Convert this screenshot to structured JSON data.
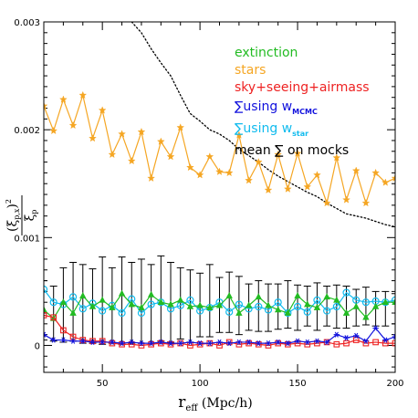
{
  "chart_data": {
    "type": "line",
    "xlabel": {
      "main": "r",
      "sub": "eff",
      "rest": " (Mpc/h)"
    },
    "ylabel": {
      "num": "(ξ",
      "num_sub": "p,x",
      "num_close": ")",
      "num_sup": "2",
      "den": "ξ",
      "den_sub": "p"
    },
    "xlim": [
      20,
      200
    ],
    "ylim": [
      -0.00025,
      0.003
    ],
    "xticks": [
      50,
      100,
      150,
      200
    ],
    "xtick_labels": [
      "50",
      "100",
      "150",
      "200"
    ],
    "yticks": [
      0,
      0.001,
      0.002,
      0.003
    ],
    "ytick_labels": [
      "0",
      "0.001",
      "0.002",
      "0.003"
    ],
    "legend_placement": "top-right",
    "legend": [
      {
        "label": "extinction",
        "color": "#22bb22"
      },
      {
        "label": "stars",
        "color": "#f5a623"
      },
      {
        "label": "sky+seeing+airmass",
        "color": "#ee2222"
      },
      {
        "label": "∑using w",
        "sub": "MCMC",
        "color": "#1111dd"
      },
      {
        "label": "∑using w",
        "sub": "star",
        "color": "#11bbee"
      },
      {
        "label": "mean ∑ on mocks",
        "color": "#000000"
      }
    ],
    "series": [
      {
        "name": "extinction",
        "marker": "triangle",
        "color": "#22bb22",
        "x": [
          20,
          25,
          30,
          35,
          40,
          45,
          50,
          55,
          60,
          65,
          70,
          75,
          80,
          85,
          90,
          95,
          100,
          105,
          110,
          115,
          120,
          125,
          130,
          135,
          140,
          145,
          150,
          155,
          160,
          165,
          170,
          175,
          180,
          185,
          190,
          195,
          200
        ],
        "y": [
          0.00033,
          0.00025,
          0.0004,
          0.0003,
          0.00046,
          0.00036,
          0.00042,
          0.00035,
          0.00048,
          0.00038,
          0.00035,
          0.00047,
          0.0004,
          0.00038,
          0.00042,
          0.00036,
          0.00037,
          0.00035,
          0.00037,
          0.00046,
          0.0003,
          0.00037,
          0.00045,
          0.00037,
          0.00033,
          0.0003,
          0.00046,
          0.00038,
          0.00035,
          0.00045,
          0.00042,
          0.0003,
          0.00036,
          0.00026,
          0.00036,
          0.0004,
          0.0004
        ]
      },
      {
        "name": "stars",
        "marker": "star",
        "color": "#f5a623",
        "x": [
          20,
          25,
          30,
          35,
          40,
          45,
          50,
          55,
          60,
          65,
          70,
          75,
          80,
          85,
          90,
          95,
          100,
          105,
          110,
          115,
          120,
          125,
          130,
          135,
          140,
          145,
          150,
          155,
          160,
          165,
          170,
          175,
          180,
          185,
          190,
          195,
          200
        ],
        "y": [
          0.00222,
          0.00199,
          0.00228,
          0.00204,
          0.00232,
          0.00192,
          0.00218,
          0.00177,
          0.00196,
          0.00171,
          0.00198,
          0.00155,
          0.00189,
          0.00175,
          0.00202,
          0.00165,
          0.00158,
          0.00175,
          0.00161,
          0.0016,
          0.00195,
          0.00153,
          0.0017,
          0.00144,
          0.00177,
          0.00145,
          0.00178,
          0.00147,
          0.00158,
          0.00132,
          0.00174,
          0.00135,
          0.00162,
          0.00132,
          0.0016,
          0.00151,
          0.00155
        ]
      },
      {
        "name": "sky+seeing+airmass",
        "marker": "square",
        "color": "#ee2222",
        "x": [
          20,
          25,
          30,
          35,
          40,
          45,
          50,
          55,
          60,
          65,
          70,
          75,
          80,
          85,
          90,
          95,
          100,
          105,
          110,
          115,
          120,
          125,
          130,
          135,
          140,
          145,
          150,
          155,
          160,
          165,
          170,
          175,
          180,
          185,
          190,
          195,
          200
        ],
        "y": [
          0.00028,
          0.00026,
          0.00014,
          8e-05,
          5e-05,
          4e-05,
          4e-05,
          2e-05,
          1e-05,
          1e-05,
          0.0,
          1e-05,
          2e-05,
          1e-05,
          2e-05,
          0.0,
          1e-05,
          2e-05,
          0.0,
          3e-05,
          1e-05,
          2e-05,
          1e-05,
          0.0,
          2e-05,
          1e-05,
          2e-05,
          1e-05,
          2e-05,
          3e-05,
          1e-05,
          2e-05,
          5e-05,
          2e-05,
          3e-05,
          2e-05,
          2e-05
        ]
      },
      {
        "name": "∑using wMCMC",
        "marker": "asterisk",
        "color": "#1111dd",
        "x": [
          20,
          25,
          30,
          35,
          40,
          45,
          50,
          55,
          60,
          65,
          70,
          75,
          80,
          85,
          90,
          95,
          100,
          105,
          110,
          115,
          120,
          125,
          130,
          135,
          140,
          145,
          150,
          155,
          160,
          165,
          170,
          175,
          180,
          185,
          190,
          195,
          200
        ],
        "y": [
          0.0001,
          5e-05,
          5e-05,
          4e-05,
          4e-05,
          3e-05,
          3e-05,
          3e-05,
          2e-05,
          3e-05,
          2e-05,
          2e-05,
          3e-05,
          2e-05,
          2e-05,
          3e-05,
          2e-05,
          2e-05,
          3e-05,
          2e-05,
          3e-05,
          3e-05,
          2e-05,
          2e-05,
          3e-05,
          2e-05,
          4e-05,
          3e-05,
          4e-05,
          3e-05,
          0.0001,
          7e-05,
          9e-05,
          4e-05,
          0.00016,
          5e-05,
          8e-05
        ]
      },
      {
        "name": "∑using wstar",
        "marker": "circle",
        "color": "#11bbee",
        "x": [
          20,
          25,
          30,
          35,
          40,
          45,
          50,
          55,
          60,
          65,
          70,
          75,
          80,
          85,
          90,
          95,
          100,
          105,
          110,
          115,
          120,
          125,
          130,
          135,
          140,
          145,
          150,
          155,
          160,
          165,
          170,
          175,
          180,
          185,
          190,
          195,
          200
        ],
        "y": [
          0.00052,
          0.0004,
          0.00038,
          0.00045,
          0.00034,
          0.00039,
          0.00032,
          0.00037,
          0.0003,
          0.00043,
          0.0003,
          0.00038,
          0.0004,
          0.00034,
          0.00037,
          0.00042,
          0.00032,
          0.00035,
          0.0004,
          0.00031,
          0.00038,
          0.00034,
          0.00036,
          0.00033,
          0.0004,
          0.0003,
          0.00036,
          0.00031,
          0.00042,
          0.00032,
          0.00036,
          0.00049,
          0.00042,
          0.0004,
          0.00041,
          0.0004,
          0.00042
        ]
      },
      {
        "name": "mean ∑ on mocks",
        "style": "dotted",
        "color": "#000000",
        "x": [
          65,
          70,
          75,
          80,
          85,
          90,
          95,
          100,
          105,
          110,
          115,
          120,
          125,
          130,
          135,
          140,
          145,
          150,
          155,
          160,
          165,
          170,
          175,
          180,
          185,
          190,
          195,
          200
        ],
        "y": [
          0.003,
          0.0029,
          0.00275,
          0.00262,
          0.0025,
          0.00232,
          0.00215,
          0.00208,
          0.002,
          0.00196,
          0.0019,
          0.00182,
          0.00176,
          0.0017,
          0.00163,
          0.00157,
          0.00152,
          0.00147,
          0.00142,
          0.00138,
          0.00132,
          0.00127,
          0.00122,
          0.0012,
          0.00118,
          0.00115,
          0.00112,
          0.0011
        ]
      }
    ],
    "errorbars": {
      "x": [
        20,
        25,
        30,
        35,
        40,
        45,
        50,
        55,
        60,
        65,
        70,
        75,
        80,
        85,
        90,
        95,
        100,
        105,
        110,
        115,
        120,
        125,
        130,
        135,
        140,
        145,
        150,
        155,
        160,
        165,
        170,
        175,
        180,
        185,
        190,
        195,
        200
      ],
      "low": [
        5e-05,
        4e-05,
        3e-05,
        4e-05,
        2e-05,
        2e-05,
        1e-05,
        2e-05,
        1e-05,
        2e-05,
        2e-05,
        2e-05,
        4e-05,
        3e-05,
        6e-05,
        3e-05,
        8e-05,
        8e-05,
        0.00012,
        0.00012,
        0.0001,
        0.00014,
        0.00013,
        0.00013,
        0.00015,
        0.00016,
        0.00014,
        0.00018,
        0.00014,
        0.00018,
        0.00016,
        0.00016,
        0.00018,
        0.00019,
        0.00018,
        0.00018,
        0.0002
      ],
      "high": [
        0.0006,
        0.00055,
        0.00072,
        0.00077,
        0.00075,
        0.00071,
        0.00082,
        0.00072,
        0.00082,
        0.00077,
        0.0008,
        0.00075,
        0.00083,
        0.00077,
        0.00072,
        0.0007,
        0.00067,
        0.00075,
        0.00063,
        0.00068,
        0.00064,
        0.00057,
        0.0006,
        0.00057,
        0.00057,
        0.0006,
        0.00056,
        0.00055,
        0.00058,
        0.00055,
        0.00056,
        0.00055,
        0.00052,
        0.00054,
        0.0005,
        0.0005,
        0.00048
      ]
    }
  }
}
